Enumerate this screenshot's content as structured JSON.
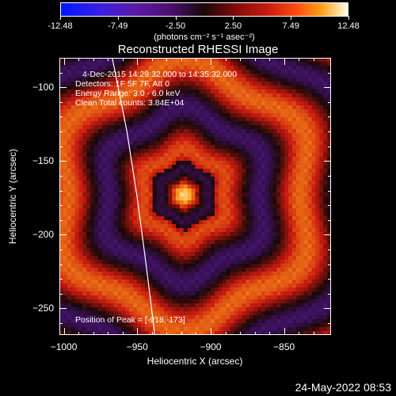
{
  "chart_data": {
    "type": "heatmap",
    "title": "Reconstructed RHESSI Image",
    "xlabel": "Heliocentric X (arcsec)",
    "ylabel": "Heliocentric Y (arcsec)",
    "xlim": [
      -1003,
      -818
    ],
    "ylim": [
      -268,
      -80
    ],
    "xticks": [
      -1000,
      -950,
      -900,
      -850
    ],
    "yticks": [
      -100,
      -150,
      -200,
      -250
    ],
    "colorbar": {
      "ticks": [
        "-12.48",
        "-7.49",
        "-2.50",
        "2.50",
        "7.49",
        "12.48"
      ],
      "range": [
        -12.48,
        12.48
      ],
      "units_text": "(photons cm⁻² s⁻¹ asec⁻²)",
      "colors": [
        "#0018ff",
        "#5a1aa8",
        "#1a0808",
        "#c81a10",
        "#ffa018",
        "#ffffe8"
      ]
    },
    "peak": {
      "x": -918,
      "y": -173
    },
    "annotations": {
      "time_range": "4-Dec-2015 14:29:32.000 to 14:35:32.000",
      "detectors": "Detectors: 1F 5F 7F, Att 0",
      "energy": "Energy Range: 3.0 - 6.0 keV",
      "clean_counts": "Clean    Total counts: 3.84E+04",
      "peak_label": "Position of Peak = [-918,-173]"
    },
    "limb_curve": [
      [
        -967,
        -80
      ],
      [
        -957,
        -130
      ],
      [
        -950,
        -175
      ],
      [
        -944,
        -220
      ],
      [
        -938,
        -268
      ]
    ]
  },
  "datestamp": "24-May-2022 08:53"
}
